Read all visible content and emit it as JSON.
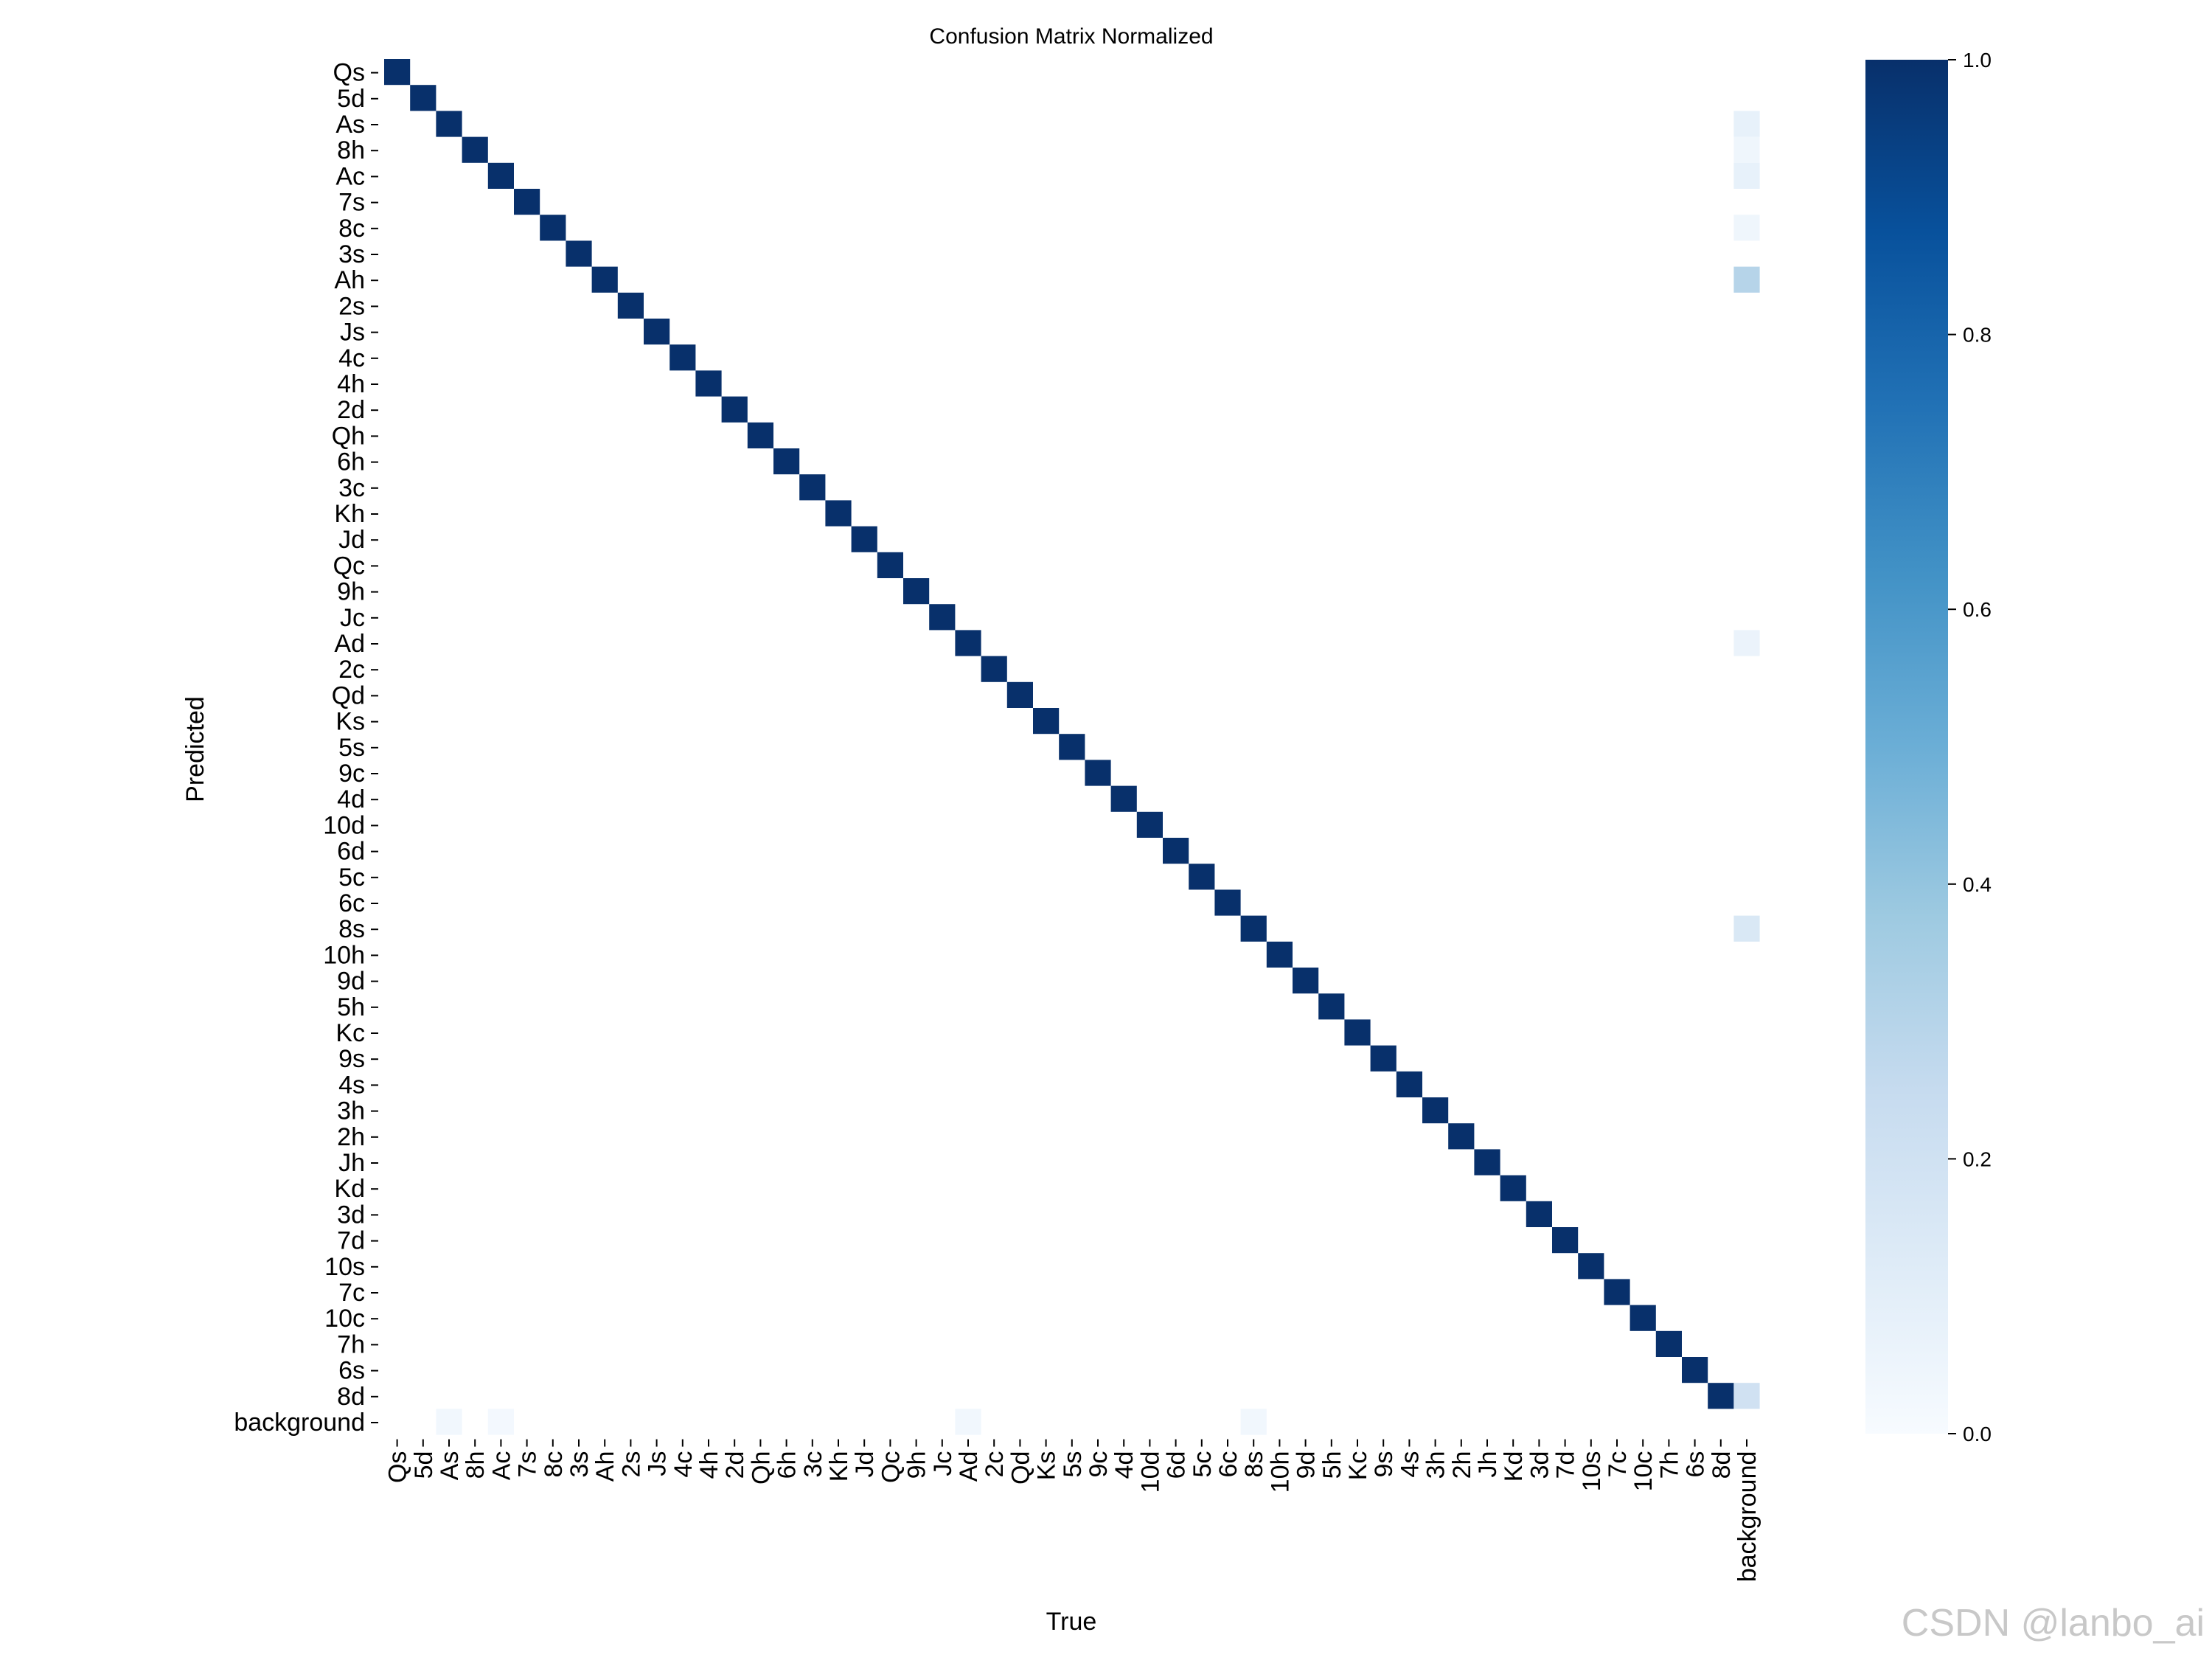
{
  "chart_data": {
    "type": "heatmap",
    "title": "Confusion Matrix Normalized",
    "xlabel": "True",
    "ylabel": "Predicted",
    "row_labels": [
      "Qs",
      "5d",
      "As",
      "8h",
      "Ac",
      "7s",
      "8c",
      "3s",
      "Ah",
      "2s",
      "Js",
      "4c",
      "4h",
      "2d",
      "Qh",
      "6h",
      "3c",
      "Kh",
      "Jd",
      "Qc",
      "9h",
      "Jc",
      "Ad",
      "2c",
      "Qd",
      "Ks",
      "5s",
      "9c",
      "4d",
      "10d",
      "6d",
      "5c",
      "6c",
      "8s",
      "10h",
      "9d",
      "5h",
      "Kc",
      "9s",
      "4s",
      "3h",
      "2h",
      "Jh",
      "Kd",
      "3d",
      "7d",
      "10s",
      "7c",
      "10c",
      "7h",
      "6s",
      "8d",
      "background"
    ],
    "col_labels": [
      "Qs",
      "5d",
      "As",
      "8h",
      "Ac",
      "7s",
      "8c",
      "3s",
      "Ah",
      "2s",
      "Js",
      "4c",
      "4h",
      "2d",
      "Qh",
      "6h",
      "3c",
      "Kh",
      "Jd",
      "Qc",
      "9h",
      "Jc",
      "Ad",
      "2c",
      "Qd",
      "Ks",
      "5s",
      "9c",
      "4d",
      "10d",
      "6d",
      "5c",
      "6c",
      "8s",
      "10h",
      "9d",
      "5h",
      "Kc",
      "9s",
      "4s",
      "3h",
      "2h",
      "Jh",
      "Kd",
      "3d",
      "7d",
      "10s",
      "7c",
      "10c",
      "7h",
      "6s",
      "8d",
      "background"
    ],
    "diagonal_value": 1.0,
    "off_diagonal_cells": [
      {
        "row": "As",
        "col": "background",
        "value": 0.08
      },
      {
        "row": "8h",
        "col": "background",
        "value": 0.04
      },
      {
        "row": "Ac",
        "col": "background",
        "value": 0.08
      },
      {
        "row": "8c",
        "col": "background",
        "value": 0.04
      },
      {
        "row": "Ah",
        "col": "background",
        "value": 0.3
      },
      {
        "row": "Ad",
        "col": "background",
        "value": 0.06
      },
      {
        "row": "8s",
        "col": "background",
        "value": 0.15
      },
      {
        "row": "8d",
        "col": "background",
        "value": 0.2
      },
      {
        "row": "background",
        "col": "As",
        "value": 0.03
      },
      {
        "row": "background",
        "col": "Ac",
        "value": 0.02
      },
      {
        "row": "background",
        "col": "Ad",
        "value": 0.03
      },
      {
        "row": "background",
        "col": "8s",
        "value": 0.03
      }
    ],
    "colorbar": {
      "colormap": "Blues",
      "range": [
        0.0,
        1.0
      ],
      "ticks": [
        "0.0",
        "0.2",
        "0.4",
        "0.6",
        "0.8",
        "1.0"
      ]
    },
    "colors": [
      "#f7fbff",
      "#deebf7",
      "#c6dbef",
      "#9ecae1",
      "#6baed6",
      "#4292c6",
      "#2171b5",
      "#08519c",
      "#08306b"
    ]
  },
  "watermark": "CSDN @lanbo_ai"
}
